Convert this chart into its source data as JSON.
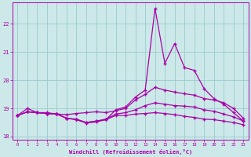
{
  "title": "",
  "xlabel": "Windchill (Refroidissement éolien,°C)",
  "bg_color": "#cce8e8",
  "line_color": "#aa00aa",
  "grid_color": "#99cccc",
  "hours": [
    0,
    1,
    2,
    3,
    4,
    5,
    6,
    7,
    8,
    9,
    10,
    11,
    12,
    13,
    14,
    15,
    16,
    17,
    18,
    19,
    20,
    21,
    22,
    23
  ],
  "line1": [
    18.75,
    19.0,
    18.85,
    18.85,
    18.8,
    18.65,
    18.6,
    18.5,
    18.55,
    18.6,
    18.95,
    19.05,
    19.4,
    19.65,
    22.55,
    20.6,
    21.3,
    20.45,
    20.35,
    19.7,
    19.35,
    19.15,
    18.85,
    18.55
  ],
  "line2": [
    18.75,
    18.88,
    18.85,
    18.82,
    18.8,
    18.78,
    18.82,
    18.85,
    18.88,
    18.85,
    18.92,
    19.0,
    19.3,
    19.5,
    19.75,
    19.65,
    19.58,
    19.52,
    19.47,
    19.35,
    19.3,
    19.2,
    19.0,
    18.65
  ],
  "line3": [
    18.75,
    18.88,
    18.85,
    18.82,
    18.8,
    18.65,
    18.62,
    18.5,
    18.55,
    18.62,
    18.8,
    18.85,
    18.95,
    19.1,
    19.2,
    19.15,
    19.1,
    19.08,
    19.05,
    18.95,
    18.9,
    18.8,
    18.7,
    18.55
  ],
  "line4": [
    18.75,
    18.88,
    18.85,
    18.82,
    18.8,
    18.65,
    18.6,
    18.48,
    18.52,
    18.6,
    18.75,
    18.75,
    18.8,
    18.82,
    18.85,
    18.82,
    18.78,
    18.72,
    18.68,
    18.62,
    18.6,
    18.55,
    18.5,
    18.42
  ],
  "ylim": [
    17.9,
    22.75
  ],
  "yticks": [
    18,
    19,
    20,
    21,
    22
  ],
  "xticks": [
    0,
    1,
    2,
    3,
    4,
    5,
    6,
    7,
    8,
    9,
    10,
    11,
    12,
    13,
    14,
    15,
    16,
    17,
    18,
    19,
    20,
    21,
    22,
    23
  ]
}
